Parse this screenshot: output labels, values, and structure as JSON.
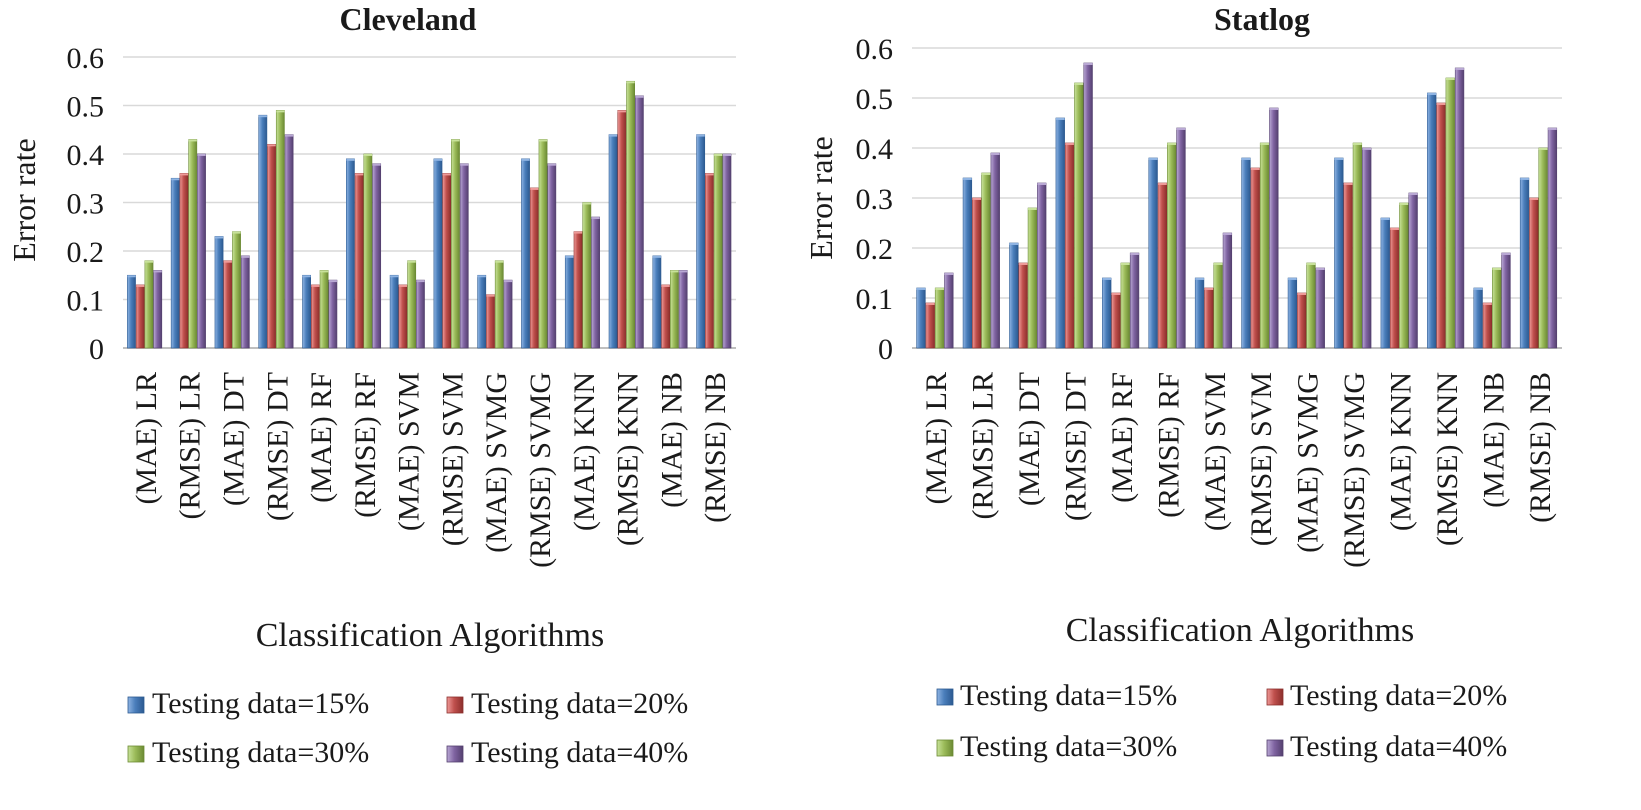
{
  "palette": {
    "s1": [
      "#8fb4e3",
      "#4a7ebb",
      "#2c5a91"
    ],
    "s2": [
      "#ee9a98",
      "#c0504d",
      "#8c2f2c"
    ],
    "s3": [
      "#c8e29a",
      "#9bbb59",
      "#6b8a33"
    ],
    "s4": [
      "#b9a8d4",
      "#8064a2",
      "#54406f"
    ],
    "grid": "#d9d9d9",
    "axis": "#bfbfbf"
  },
  "legend": [
    "Testing data=15%",
    "Testing data=20%",
    "Testing data=30%",
    "Testing data=40%"
  ],
  "chart_data": [
    {
      "type": "bar",
      "title": "Cleveland",
      "xlabel": "Classification Algorithms",
      "ylabel": "Error rate",
      "ylim": [
        0,
        0.6
      ],
      "yticks": [
        "0",
        "0.1",
        "0.2",
        "0.3",
        "0.4",
        "0.5",
        "0.6"
      ],
      "legend_position": "bottom",
      "categories": [
        "(MAE) LR",
        "(RMSE) LR",
        "(MAE) DT",
        "(RMSE) DT",
        "(MAE) RF",
        "(RMSE) RF",
        "(MAE) SVM",
        "(RMSE) SVM",
        "(MAE) SVMG",
        "(RMSE) SVMG",
        "(MAE) KNN",
        "(RMSE) KNN",
        "(MAE) NB",
        "(RMSE) NB"
      ],
      "series": [
        {
          "name": "Testing data=15%",
          "values": [
            0.15,
            0.35,
            0.23,
            0.48,
            0.15,
            0.39,
            0.15,
            0.39,
            0.15,
            0.39,
            0.19,
            0.44,
            0.19,
            0.44
          ]
        },
        {
          "name": "Testing data=20%",
          "values": [
            0.13,
            0.36,
            0.18,
            0.42,
            0.13,
            0.36,
            0.13,
            0.36,
            0.11,
            0.33,
            0.24,
            0.49,
            0.13,
            0.36
          ]
        },
        {
          "name": "Testing data=30%",
          "values": [
            0.18,
            0.43,
            0.24,
            0.49,
            0.16,
            0.4,
            0.18,
            0.43,
            0.18,
            0.43,
            0.3,
            0.55,
            0.16,
            0.4
          ]
        },
        {
          "name": "Testing data=40%",
          "values": [
            0.16,
            0.4,
            0.19,
            0.44,
            0.14,
            0.38,
            0.14,
            0.38,
            0.14,
            0.38,
            0.27,
            0.52,
            0.16,
            0.4
          ]
        }
      ]
    },
    {
      "type": "bar",
      "title": "Statlog",
      "xlabel": "Classification Algorithms",
      "ylabel": "Error rate",
      "ylim": [
        0,
        0.6
      ],
      "yticks": [
        "0",
        "0.1",
        "0.2",
        "0.3",
        "0.4",
        "0.5",
        "0.6"
      ],
      "legend_position": "bottom",
      "categories": [
        "(MAE) LR",
        "(RMSE) LR",
        "(MAE) DT",
        "(RMSE) DT",
        "(MAE) RF",
        "(RMSE) RF",
        "(MAE) SVM",
        "(RMSE) SVM",
        "(MAE) SVMG",
        "(RMSE) SVMG",
        "(MAE) KNN",
        "(RMSE) KNN",
        "(MAE) NB",
        "(RMSE) NB"
      ],
      "series": [
        {
          "name": "Testing data=15%",
          "values": [
            0.12,
            0.34,
            0.21,
            0.46,
            0.14,
            0.38,
            0.14,
            0.38,
            0.14,
            0.38,
            0.26,
            0.51,
            0.12,
            0.34
          ]
        },
        {
          "name": "Testing data=20%",
          "values": [
            0.09,
            0.3,
            0.17,
            0.41,
            0.11,
            0.33,
            0.12,
            0.36,
            0.11,
            0.33,
            0.24,
            0.49,
            0.09,
            0.3
          ]
        },
        {
          "name": "Testing data=30%",
          "values": [
            0.12,
            0.35,
            0.28,
            0.53,
            0.17,
            0.41,
            0.17,
            0.41,
            0.17,
            0.41,
            0.29,
            0.54,
            0.16,
            0.4
          ]
        },
        {
          "name": "Testing data=40%",
          "values": [
            0.15,
            0.39,
            0.33,
            0.57,
            0.19,
            0.44,
            0.23,
            0.48,
            0.16,
            0.4,
            0.31,
            0.56,
            0.19,
            0.44
          ]
        }
      ]
    }
  ]
}
